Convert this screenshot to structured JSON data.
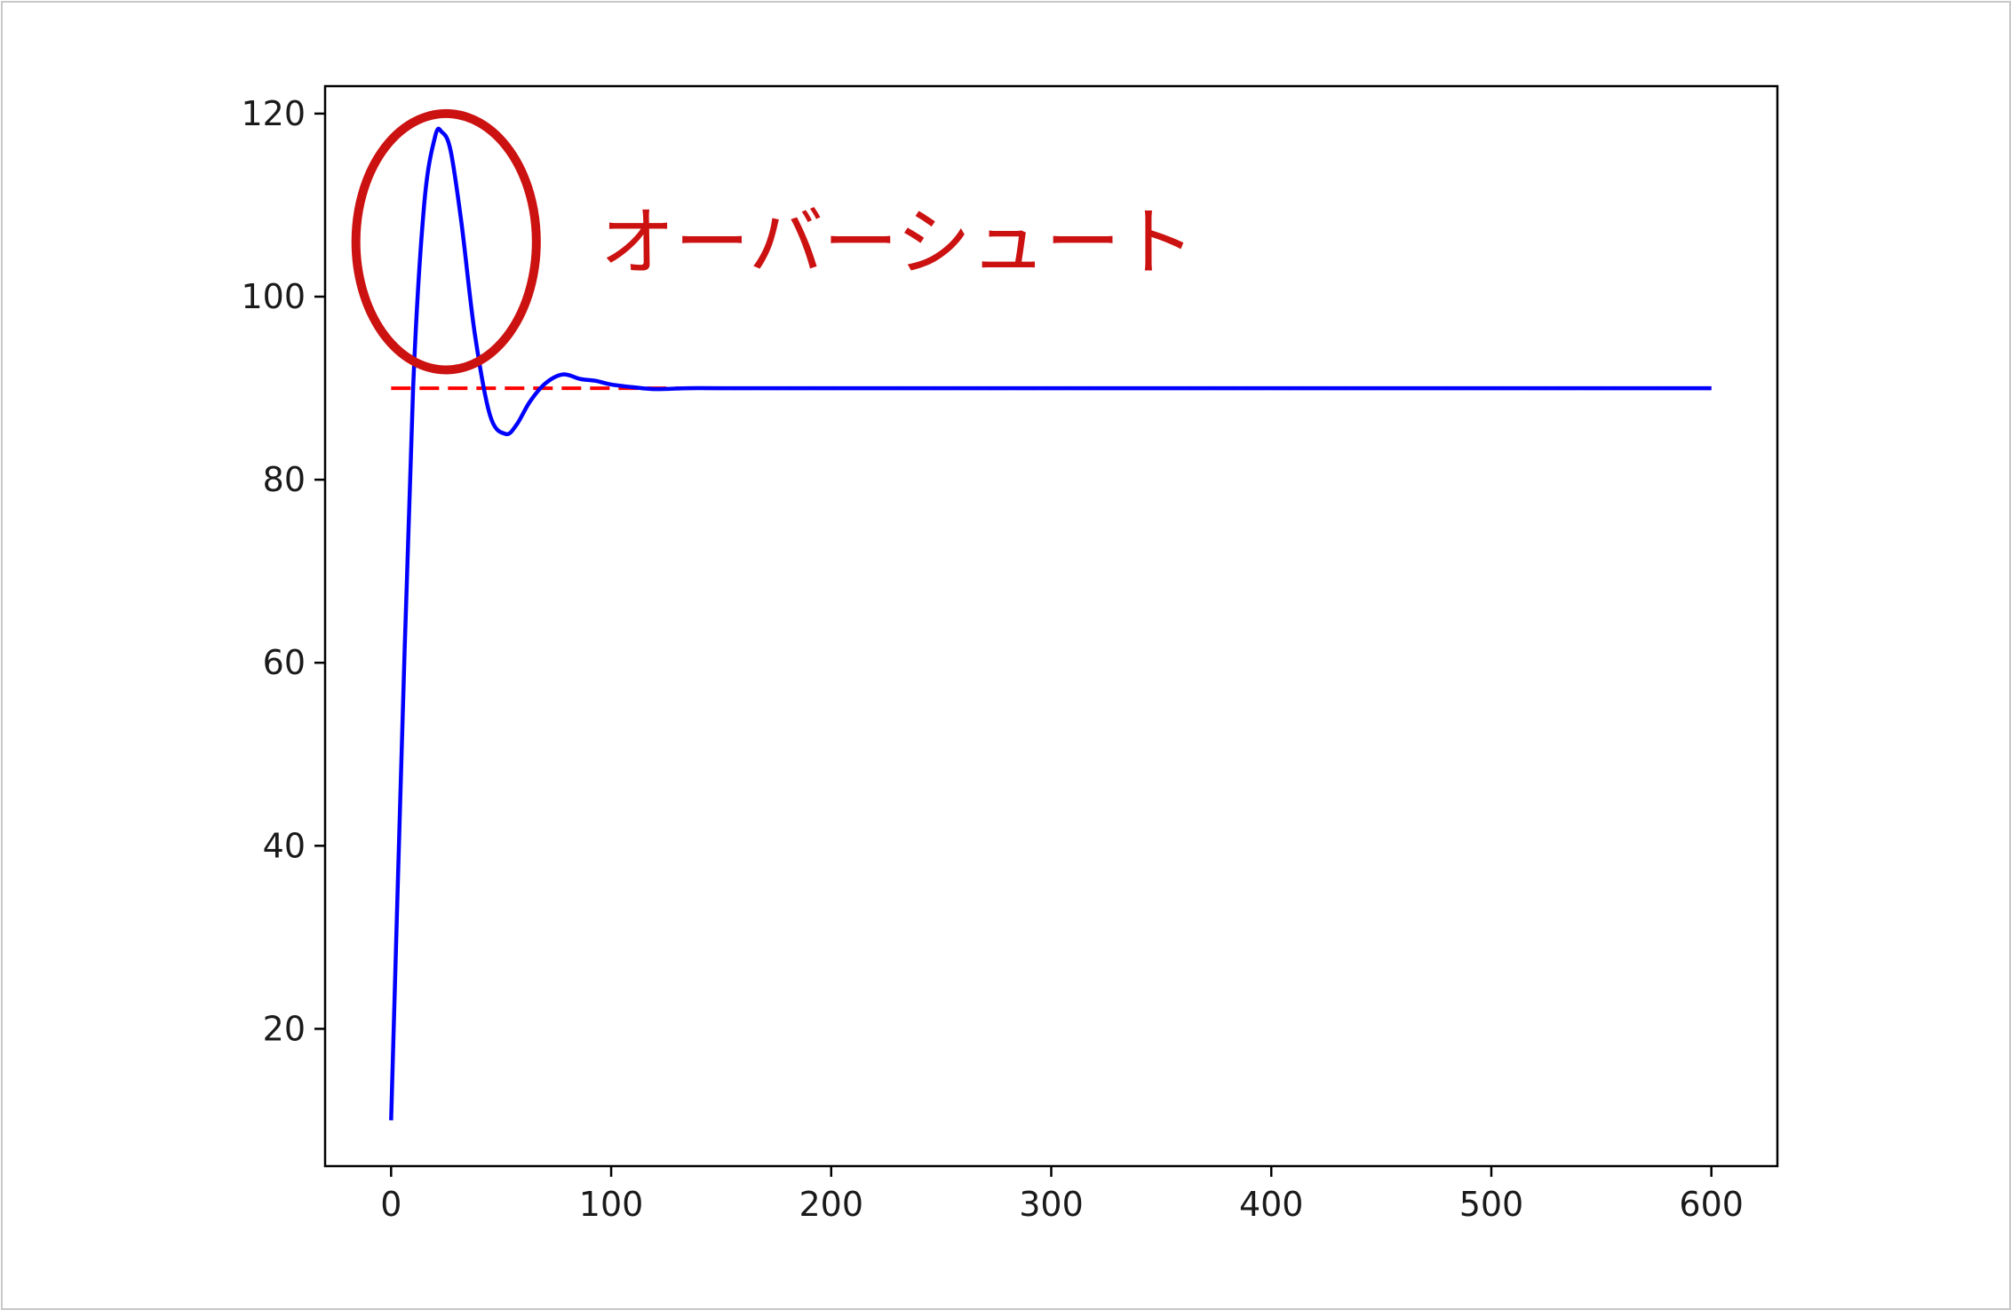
{
  "chart_data": {
    "type": "line",
    "title": "",
    "xlabel": "",
    "ylabel": "",
    "xlim": [
      -30,
      630
    ],
    "ylim": [
      5,
      123
    ],
    "xticks": [
      0,
      100,
      200,
      300,
      400,
      500,
      600
    ],
    "yticks": [
      20,
      40,
      60,
      80,
      100,
      120
    ],
    "grid": false,
    "series": [
      {
        "color": "#0000ff",
        "style": "solid",
        "x": [
          0,
          5,
          10,
          15,
          20,
          23,
          27,
          32,
          38,
          45,
          52,
          57,
          63,
          70,
          78,
          86,
          93,
          100,
          110,
          120,
          135,
          150,
          200,
          300,
          400,
          500,
          600
        ],
        "y": [
          10,
          52,
          90,
          110,
          117.5,
          118,
          116,
          108,
          96,
          87,
          85,
          86,
          88.5,
          90.5,
          91.5,
          91,
          90.8,
          90.4,
          90.1,
          89.9,
          90,
          90,
          90,
          90,
          90,
          90,
          90
        ]
      },
      {
        "color": "#ff0000",
        "style": "dashed",
        "x": [
          0,
          600
        ],
        "y": [
          90,
          90
        ]
      }
    ],
    "annotations": [
      {
        "type": "ellipse",
        "color": "#cc1111",
        "center": [
          25,
          106
        ],
        "rx": 41,
        "ry": 14
      },
      {
        "type": "text",
        "text": "オーバーシュート",
        "color": "#cc1111",
        "at": [
          95,
          106
        ]
      }
    ]
  }
}
